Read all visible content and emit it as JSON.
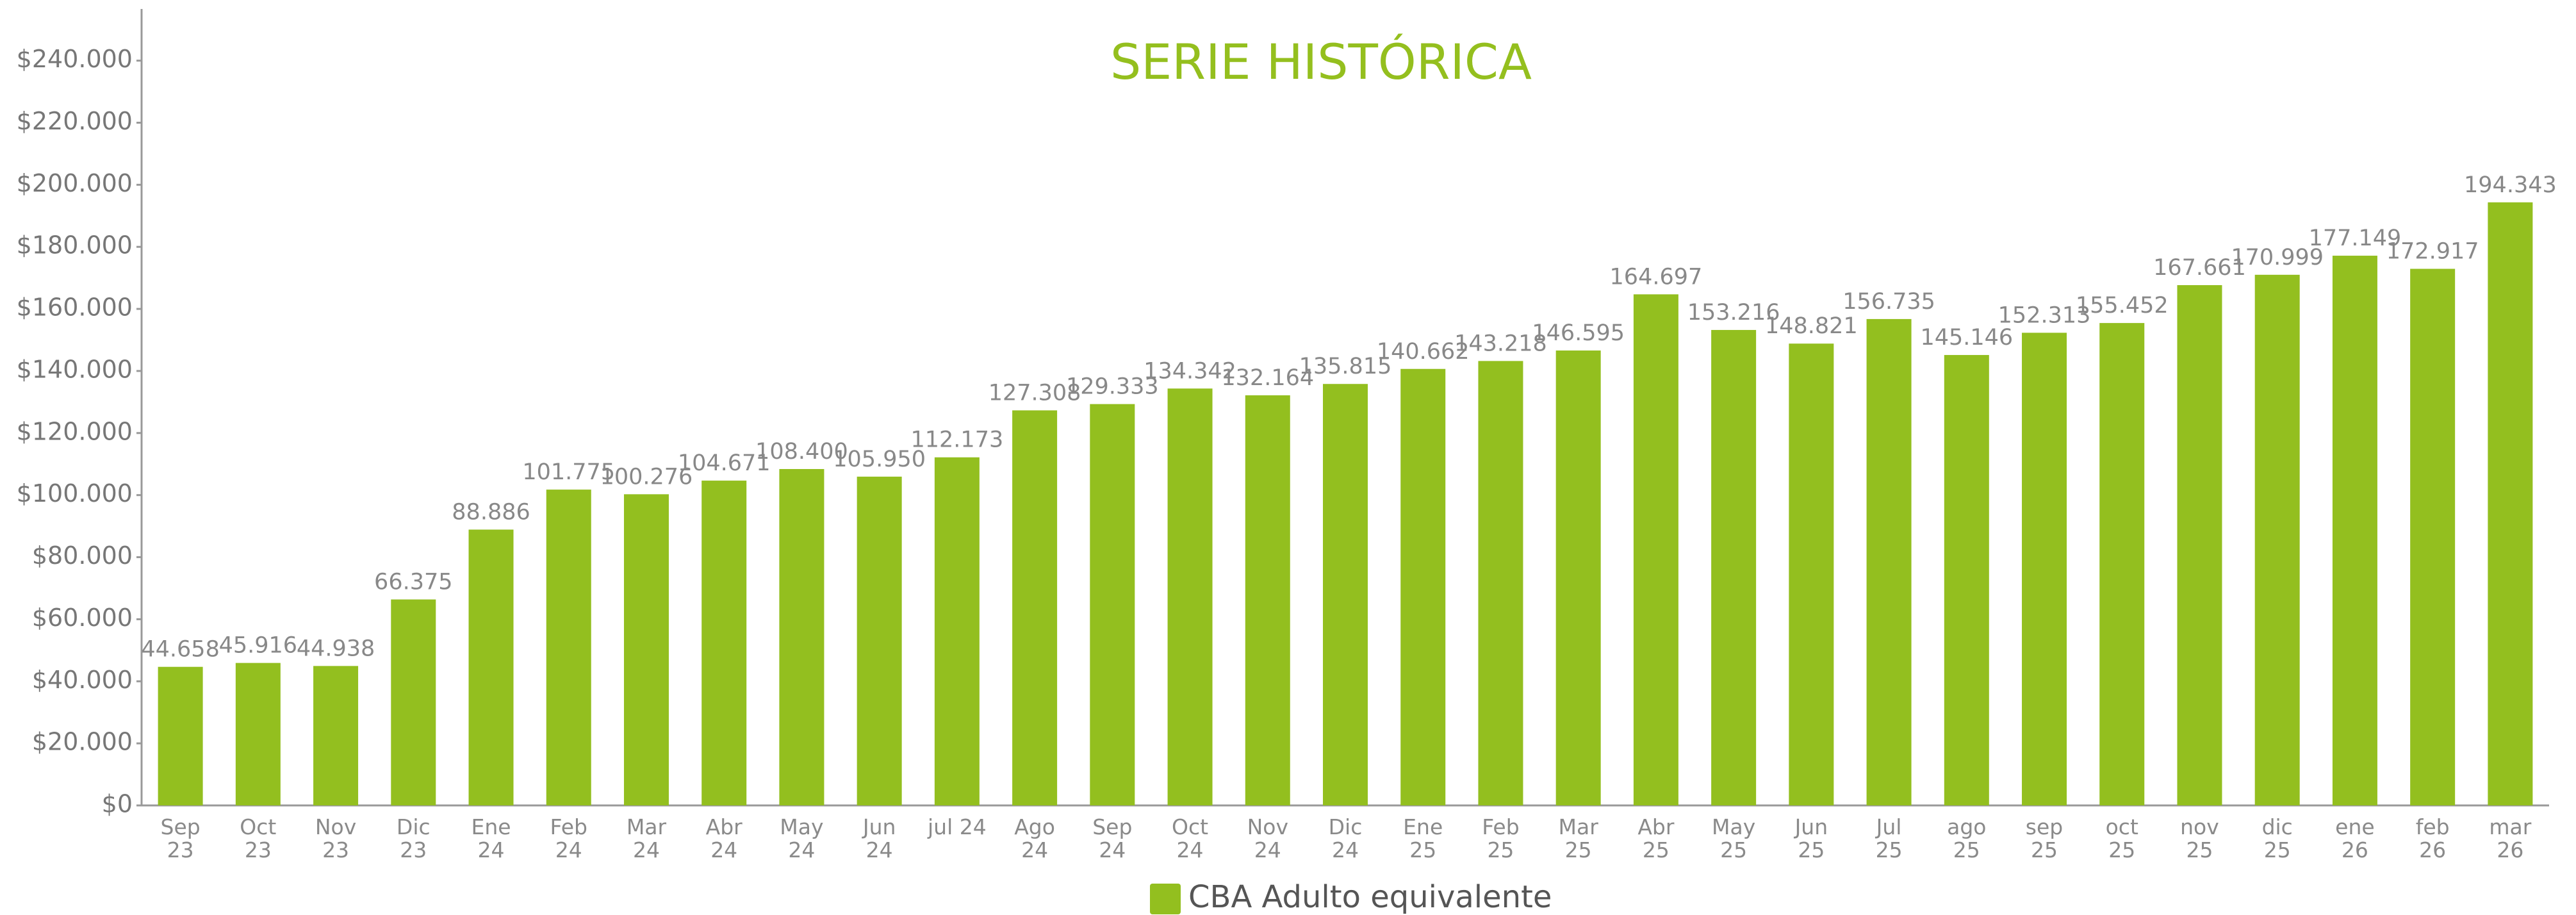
{
  "chart_data": {
    "type": "bar",
    "title": "SERIE HISTÓRICA",
    "categories": [
      "Sep\n23",
      "Oct\n23",
      "Nov\n23",
      "Dic\n23",
      "Ene\n24",
      "Feb\n24",
      "Mar\n24",
      "Abr\n24",
      "May\n24",
      "Jun\n24",
      "jul 24",
      "Ago\n24",
      "Sep\n24",
      "Oct\n24",
      "Nov\n24",
      "Dic\n24",
      "Ene\n25",
      "Feb\n25",
      "Mar\n25",
      "Abr\n25",
      "May\n25",
      "Jun\n25",
      "Jul\n25",
      "ago\n25",
      "sep\n25",
      "oct\n25",
      "nov\n25",
      "dic\n25",
      "ene\n26",
      "feb\n26",
      "mar\n26"
    ],
    "series": [
      {
        "name": "CBA Adulto equivalente",
        "color": "#93bf1f",
        "values": [
          44658,
          45916,
          44938,
          66375,
          88886,
          101775,
          100276,
          104671,
          108400,
          105950,
          112173,
          127308,
          129333,
          134342,
          132164,
          135815,
          140662,
          143218,
          146595,
          164697,
          153216,
          148821,
          156735,
          145146,
          152313,
          155452,
          167661,
          170999,
          177149,
          172917,
          194343
        ],
        "value_labels": [
          "44.658",
          "45.916",
          "44.938",
          "66.375",
          "88.886",
          "101.775",
          "100.276",
          "104.671",
          "108.400",
          "105.950",
          "112.173",
          "127.308",
          "129.333",
          "134.342",
          "132.164",
          "135.815",
          "140.662",
          "143.218",
          "146.595",
          "164.697",
          "153.216",
          "148.821",
          "156.735",
          "145.146",
          "152.313",
          "155.452",
          "167.661",
          "170.999",
          "177.149",
          "172.917",
          "194.343"
        ]
      }
    ],
    "ylim": [
      0,
      255000
    ],
    "yticks": [
      {
        "value": 0,
        "label": "$0"
      },
      {
        "value": 20000,
        "label": "$20.000"
      },
      {
        "value": 40000,
        "label": "$40.000"
      },
      {
        "value": 60000,
        "label": "$60.000"
      },
      {
        "value": 80000,
        "label": "$80.000"
      },
      {
        "value": 100000,
        "label": "$100.000"
      },
      {
        "value": 120000,
        "label": "$120.000"
      },
      {
        "value": 140000,
        "label": "$140.000"
      },
      {
        "value": 160000,
        "label": "$160.000"
      },
      {
        "value": 180000,
        "label": "$180.000"
      },
      {
        "value": 200000,
        "label": "$200.000"
      },
      {
        "value": 220000,
        "label": "$220.000"
      },
      {
        "value": 240000,
        "label": "$240.000"
      }
    ],
    "grid": false,
    "legend": "bottom"
  }
}
